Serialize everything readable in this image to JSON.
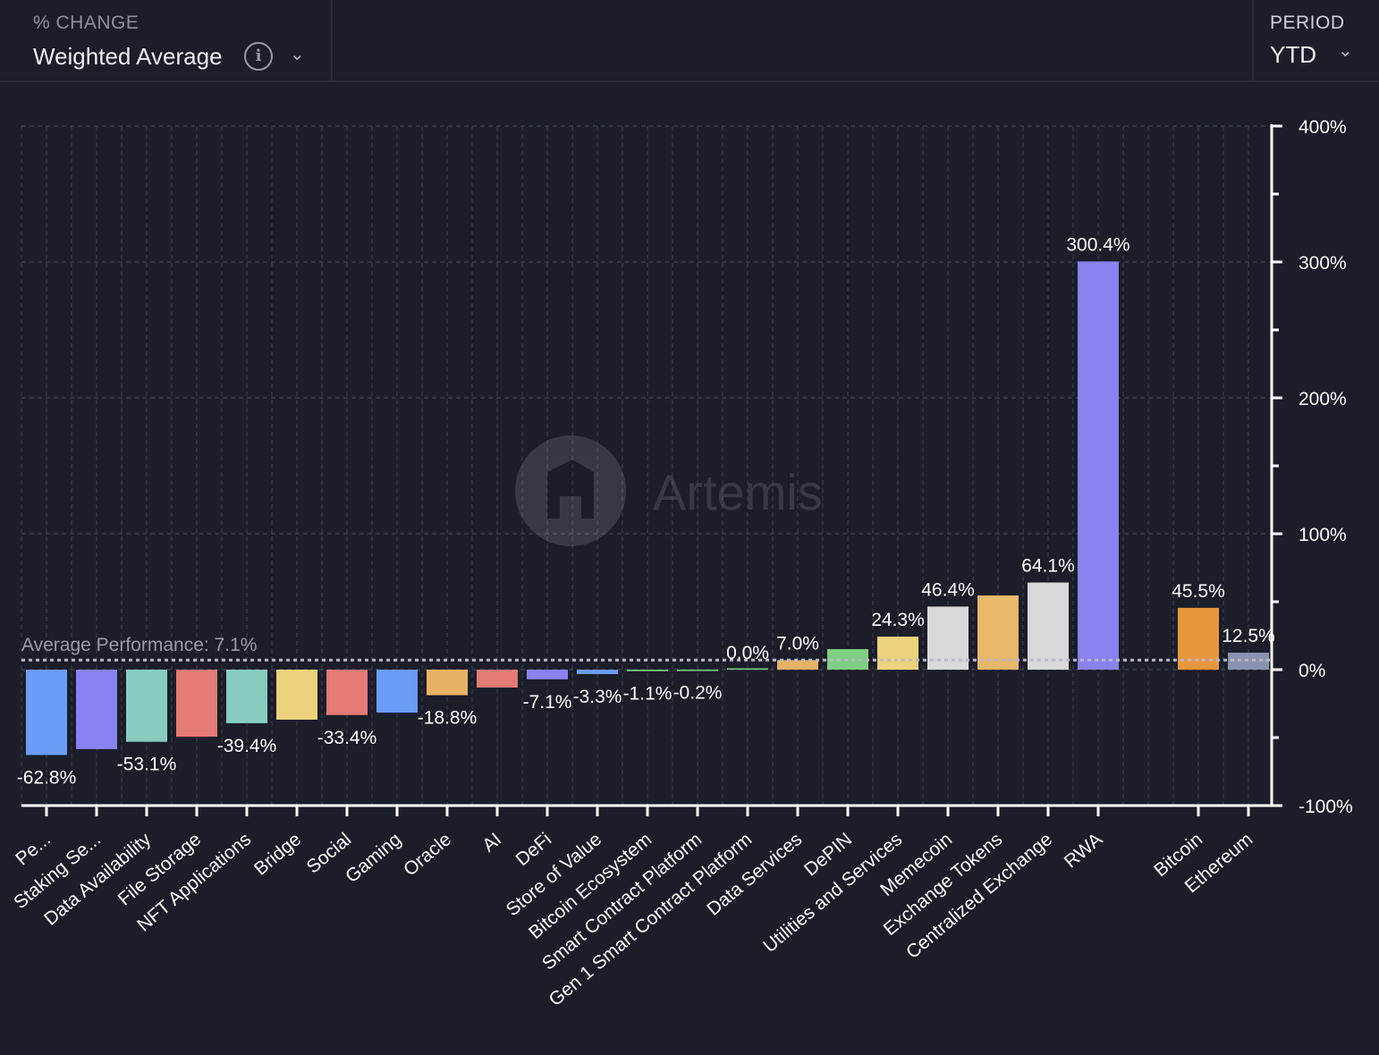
{
  "header": {
    "metric_label": "% CHANGE",
    "metric_value": "Weighted Average",
    "info_icon": "info-circle-icon",
    "period_label": "PERIOD",
    "period_value": "YTD"
  },
  "watermark": "Artemis",
  "chart_data": {
    "type": "bar",
    "ylim": [
      -100,
      400
    ],
    "yticks": [
      "400%",
      "300%",
      "200%",
      "100%",
      "0%",
      "-100%"
    ],
    "ytick_values": [
      400,
      300,
      200,
      100,
      0,
      -100
    ],
    "grid": true,
    "average": {
      "label": "Average Performance: 7.1%",
      "value": 7.1
    },
    "categories": [
      "Pe...",
      "Staking Se...",
      "Data Availability",
      "File Storage",
      "NFT Applications",
      "Bridge",
      "Social",
      "Gaming",
      "Oracle",
      "AI",
      "DeFi",
      "Store of Value",
      "Bitcoin Ecosystem",
      "Smart Contract Platform",
      "Gen 1 Smart Contract Platform",
      "Data Services",
      "DePIN",
      "Utilities and Services",
      "Memecoin",
      "Exchange Tokens",
      "Centralized Exchange",
      "RWA",
      "",
      "Bitcoin",
      "Ethereum"
    ],
    "values": [
      -62.8,
      -58.5,
      -53.1,
      -49.3,
      -39.4,
      -36.8,
      -33.4,
      -31.6,
      -18.8,
      -13.2,
      -7.1,
      -3.3,
      -1.1,
      -0.2,
      0.0,
      7.0,
      15.1,
      24.3,
      46.4,
      54.6,
      64.1,
      300.4,
      null,
      45.5,
      12.5
    ],
    "data_labels": [
      "-62.8%",
      "",
      "-53.1%",
      "",
      "-39.4%",
      "",
      "-33.4%",
      "",
      "-18.8%",
      "",
      "-7.1%",
      "-3.3%",
      "-1.1%",
      "-0.2%",
      "0.0%",
      "7.0%",
      "",
      "24.3%",
      "46.4%",
      "",
      "64.1%",
      "300.4%",
      "",
      "45.5%",
      "12.5%"
    ],
    "colors": [
      "#6b9cf6",
      "#8a82ef",
      "#86cdc0",
      "#e47b74",
      "#86cdc0",
      "#ecd27c",
      "#e47b74",
      "#6b9cf6",
      "#e9b166",
      "#e47b74",
      "#8a82ef",
      "#6b9cf6",
      "#7fcf82",
      "#7fcf82",
      "#7fcf82",
      "#e9b166",
      "#7fcf82",
      "#ecd27c",
      "#d9d9db",
      "#e9b86a",
      "#d9d9db",
      "#8a82ef",
      null,
      "#e8963c",
      "#8a93b0"
    ]
  }
}
